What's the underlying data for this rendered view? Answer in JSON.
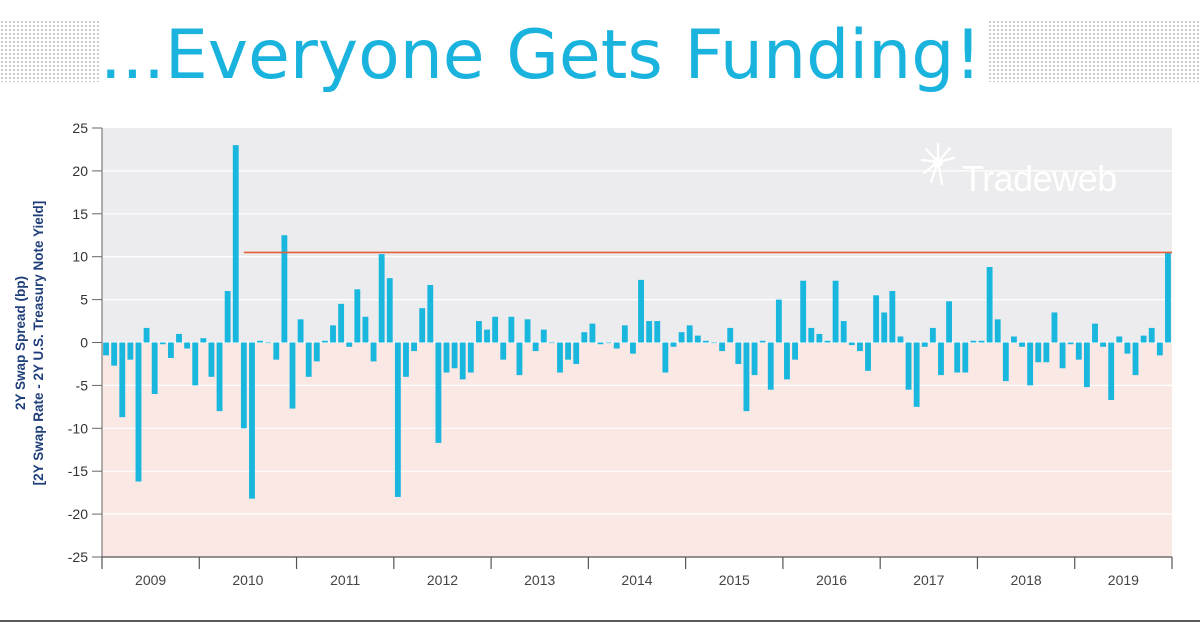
{
  "title": "...Everyone Gets Funding!",
  "logo": {
    "text": "Tradeweb",
    "icon": "tradeweb-starburst-icon"
  },
  "colors": {
    "title": "#19b3dd",
    "bar": "#19b6de",
    "threshold_line": "#e2603a",
    "positive_band": "#ececee",
    "negative_band": "#f9e8e3",
    "axis_label": "#1f3f7a"
  },
  "chart_data": {
    "type": "bar",
    "ylabel_lines": [
      "2Y Swap Spread (bp)",
      "[2Y Swap Rate - 2Y U.S. Treasury Note Yield]"
    ],
    "xlabel": "",
    "ylim": [
      -25,
      25
    ],
    "yticks": [
      25,
      20,
      15,
      10,
      5,
      0,
      -5,
      -10,
      -15,
      -20,
      -25
    ],
    "x_tick_labels": [
      "2009",
      "2010",
      "2011",
      "2012",
      "2013",
      "2014",
      "2015",
      "2016",
      "2017",
      "2018",
      "2019"
    ],
    "frequency": "monthly",
    "start": "2009-01",
    "end": "2019-12",
    "grid": true,
    "shading": {
      "positive": "gray",
      "negative": "pink"
    },
    "reference_line": {
      "value": 10.5,
      "from": "2010-06",
      "to": "2019-12"
    },
    "values": [
      -1.5,
      -2.7,
      -8.7,
      -2.0,
      -16.2,
      1.7,
      -6.0,
      -0.2,
      -1.8,
      1.0,
      -0.7,
      -5.0,
      0.5,
      -4.0,
      -8.0,
      6.0,
      23.0,
      -10.0,
      -18.2,
      0.2,
      0.0,
      -2.0,
      12.5,
      -7.7,
      2.7,
      -4.0,
      -2.2,
      0.2,
      2.0,
      4.5,
      -0.5,
      6.2,
      3.0,
      -2.2,
      10.3,
      7.5,
      -18.0,
      -4.0,
      -1.0,
      4.0,
      6.7,
      -11.7,
      -3.5,
      -3.0,
      -4.3,
      -3.5,
      2.5,
      1.5,
      3.0,
      -2.0,
      3.0,
      -3.8,
      2.7,
      -1.0,
      1.5,
      0.0,
      -3.5,
      -2.0,
      -2.5,
      1.2,
      2.2,
      -0.2,
      0.0,
      -0.7,
      2.0,
      -1.3,
      7.3,
      2.5,
      2.5,
      -3.5,
      -0.5,
      1.2,
      2.0,
      0.8,
      0.2,
      0.0,
      -1.0,
      1.7,
      -2.5,
      -8.0,
      -3.8,
      0.2,
      -5.5,
      5.0,
      -4.3,
      -2.0,
      7.2,
      1.7,
      1.0,
      0.2,
      7.2,
      2.5,
      -0.3,
      -1.0,
      -3.3,
      5.5,
      3.5,
      6.0,
      0.7,
      -5.5,
      -7.5,
      -0.5,
      1.7,
      -3.8,
      4.8,
      -3.5,
      -3.5,
      0.2,
      0.2,
      8.8,
      2.7,
      -4.5,
      0.7,
      -0.5,
      -5.0,
      -2.3,
      -2.3,
      3.5,
      -3.0,
      -0.2,
      -2.0,
      -5.2,
      2.2,
      -0.5,
      -6.7,
      0.7,
      -1.3,
      -3.8,
      0.8,
      1.7,
      -1.5,
      10.5
    ]
  }
}
